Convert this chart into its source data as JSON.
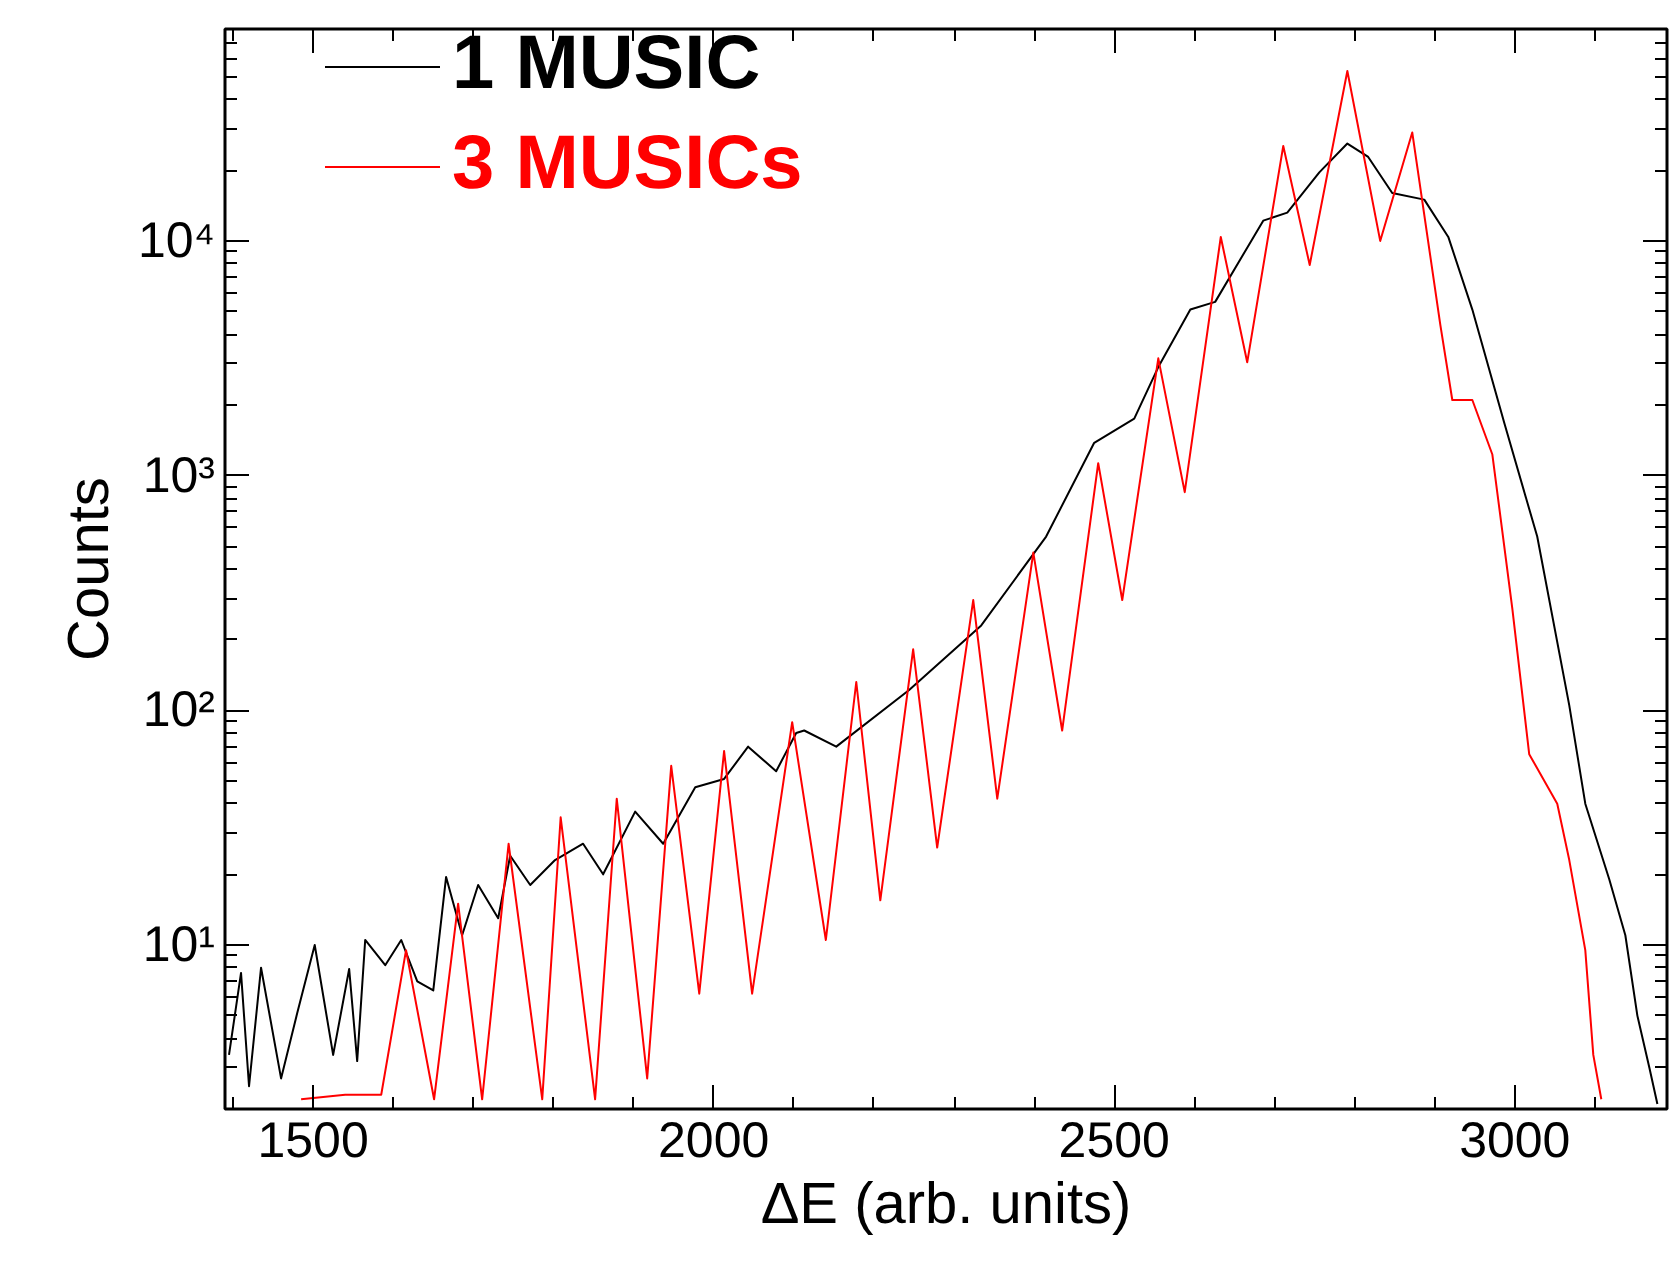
{
  "chart_data": {
    "type": "line",
    "xlabel": "ΔE (arb. units)",
    "ylabel": "Counts",
    "log": "y",
    "xlim": [
      1390,
      3190
    ],
    "ylim": [
      2,
      80000
    ],
    "xticks": [
      1500,
      2000,
      2500,
      3000
    ],
    "yticks": [
      {
        "value": 10,
        "label": "10¹"
      },
      {
        "value": 100,
        "label": "10²"
      },
      {
        "value": 1000,
        "label": "10³"
      },
      {
        "value": 10000,
        "label": "10⁴"
      }
    ],
    "grid": false,
    "legend": "top left",
    "series": [
      {
        "name": "1 MUSIC",
        "color": "#000000",
        "x": [
          1395,
          1410,
          1420,
          1435,
          1460,
          1480,
          1502,
          1525,
          1545,
          1555,
          1565,
          1590,
          1610,
          1630,
          1650,
          1666,
          1686,
          1706,
          1731,
          1746,
          1771,
          1802,
          1837,
          1862,
          1902,
          1937,
          1977,
          2013,
          2043,
          2078,
          2103,
          2113,
          2153,
          2244,
          2334,
          2415,
          2475,
          2525,
          2555,
          2595,
          2626,
          2686,
          2716,
          2756,
          2791,
          2817,
          2847,
          2887,
          2917,
          2947,
          2987,
          3028,
          3068,
          3088,
          3118,
          3138,
          3153,
          3168,
          3178
        ],
        "values": [
          3.4,
          7.6,
          2.5,
          8,
          2.7,
          5.1,
          10,
          3.4,
          7.9,
          3.2,
          10.5,
          8.2,
          10.5,
          7,
          6.4,
          19.5,
          11,
          18,
          13,
          24,
          18,
          23,
          27,
          20,
          37,
          27,
          47,
          51,
          70,
          55,
          80,
          82,
          70,
          122,
          230,
          550,
          1380,
          1750,
          2900,
          5100,
          5500,
          12200,
          13200,
          19600,
          26000,
          22800,
          16000,
          15000,
          10400,
          5100,
          1670,
          550,
          105,
          40,
          19,
          11,
          5,
          3,
          2.1
        ]
      },
      {
        "name": "3 MUSICs",
        "color": "#ff0000",
        "x": [
          1485,
          1540,
          1560,
          1585,
          1616,
          1651,
          1681,
          1711,
          1744,
          1786,
          1809,
          1852,
          1879,
          1917,
          1947,
          1982,
          2013,
          2048,
          2098,
          2140,
          2178,
          2208,
          2249,
          2279,
          2324,
          2354,
          2399,
          2435,
          2480,
          2510,
          2555,
          2588,
          2633,
          2666,
          2711,
          2744,
          2791,
          2832,
          2872,
          2907,
          2922,
          2947,
          2972,
          2997,
          3018,
          3053,
          3068,
          3088,
          3098,
          3108
        ],
        "values": [
          2.2,
          2.3,
          2.3,
          2.3,
          9.5,
          2.2,
          15,
          2.2,
          27,
          2.2,
          35,
          2.2,
          42,
          2.7,
          58,
          6.2,
          67,
          6.2,
          89,
          10.5,
          132,
          15.5,
          182,
          26,
          295,
          42,
          470,
          82,
          1130,
          295,
          3160,
          850,
          10400,
          3040,
          25400,
          7900,
          53000,
          10000,
          29000,
          4400,
          2100,
          2100,
          1230,
          270,
          65,
          40,
          23,
          9.5,
          3.4,
          2.2
        ]
      }
    ]
  }
}
